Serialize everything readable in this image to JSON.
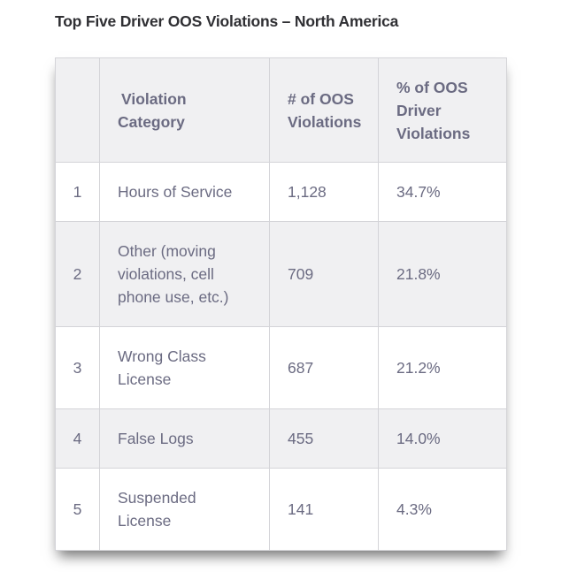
{
  "title": "Top Five Driver OOS Violations – North America",
  "table": {
    "headers": {
      "rank": "",
      "category_line1": "Violation",
      "category_line2": "Category",
      "count_line1": "# of OOS",
      "count_line2": "Violations",
      "pct_line1": "% of OOS",
      "pct_line2": "Driver",
      "pct_line3": "Violations"
    },
    "rows": [
      {
        "rank": "1",
        "category": [
          "Hours of Service"
        ],
        "count": "1,128",
        "pct": "34.7%"
      },
      {
        "rank": "2",
        "category": [
          "Other (moving",
          "violations, cell",
          "phone use, etc.)"
        ],
        "count": "709",
        "pct": "21.8%"
      },
      {
        "rank": "3",
        "category": [
          "Wrong Class",
          "License"
        ],
        "count": "687",
        "pct": "21.2%"
      },
      {
        "rank": "4",
        "category": [
          "False Logs"
        ],
        "count": "455",
        "pct": "14.0%"
      },
      {
        "rank": "5",
        "category": [
          "Suspended",
          "License"
        ],
        "count": "141",
        "pct": "4.3%"
      }
    ]
  }
}
